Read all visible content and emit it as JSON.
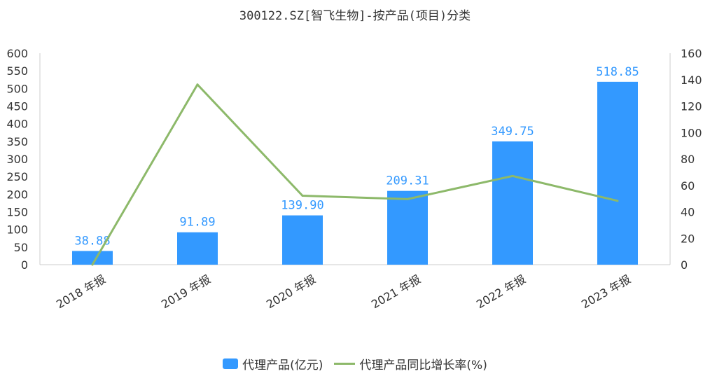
{
  "title": "300122.SZ[智飞生物]-按产品(项目)分类",
  "colors": {
    "bar": "#3399ff",
    "line": "#8db96a",
    "label": "#3399ff",
    "axis": "#cccccc",
    "text": "#333333"
  },
  "chart_data": {
    "type": "bar",
    "title": "300122.SZ[智飞生物]-按产品(项目)分类",
    "categories": [
      "2018 年报",
      "2019 年报",
      "2020 年报",
      "2021 年报",
      "2022 年报",
      "2023 年报"
    ],
    "series": [
      {
        "name": "代理产品(亿元)",
        "type": "bar",
        "axis": "left",
        "values": [
          38.88,
          91.89,
          139.9,
          209.31,
          349.75,
          518.85
        ],
        "labels": [
          "38.88",
          "91.89",
          "139.90",
          "209.31",
          "349.75",
          "518.85"
        ]
      },
      {
        "name": "代理产品同比增长率(%)",
        "type": "line",
        "axis": "right",
        "values": [
          0,
          136.3,
          52.2,
          49.6,
          67.1,
          48.3
        ]
      }
    ],
    "y_left": {
      "min": 0,
      "max": 600,
      "step": 50,
      "ticks": [
        "0",
        "50",
        "100",
        "150",
        "200",
        "250",
        "300",
        "350",
        "400",
        "450",
        "500",
        "550",
        "600"
      ]
    },
    "y_right": {
      "min": 0,
      "max": 160,
      "step": 20,
      "ticks": [
        "0",
        "20",
        "40",
        "60",
        "80",
        "100",
        "120",
        "140",
        "160"
      ]
    },
    "grid": false,
    "legend_position": "bottom"
  },
  "legend": {
    "bar_label": "代理产品(亿元)",
    "line_label": "代理产品同比增长率(%)"
  }
}
